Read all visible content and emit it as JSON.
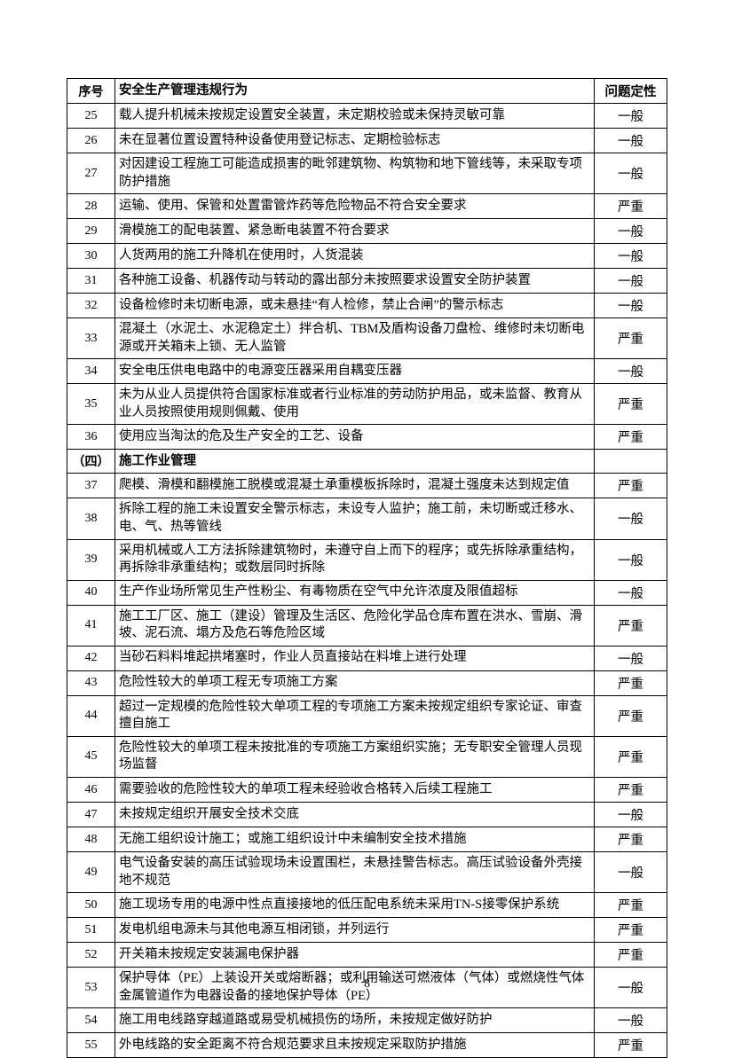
{
  "table": {
    "headers": {
      "num": "序号",
      "content": "安全生产管理违规行为",
      "level": "问题定性"
    },
    "section": {
      "num": "（四）",
      "title": "施工作业管理"
    },
    "rows": [
      {
        "num": "25",
        "content": "载人提升机械未按规定设置安全装置，未定期校验或未保持灵敏可靠",
        "level": "一般"
      },
      {
        "num": "26",
        "content": "未在显著位置设置特种设备使用登记标志、定期检验标志",
        "level": "一般"
      },
      {
        "num": "27",
        "content": "对因建设工程施工可能造成损害的毗邻建筑物、构筑物和地下管线等，未采取专项防护措施",
        "level": "一般"
      },
      {
        "num": "28",
        "content": "运输、使用、保管和处置雷管炸药等危险物品不符合安全要求",
        "level": "严重"
      },
      {
        "num": "29",
        "content": "滑模施工的配电装置、紧急断电装置不符合要求",
        "level": "一般"
      },
      {
        "num": "30",
        "content": "人货两用的施工升降机在使用时，人货混装",
        "level": "一般"
      },
      {
        "num": "31",
        "content": "各种施工设备、机器传动与转动的露出部分未按照要求设置安全防护装置",
        "level": "一般"
      },
      {
        "num": "32",
        "content": "设备检修时未切断电源，或未悬挂“有人检修，禁止合闸”的警示标志",
        "level": "一般"
      },
      {
        "num": "33",
        "content": "混凝土（水泥土、水泥稳定土）拌合机、TBM及盾构设备刀盘检、维修时未切断电源或开关箱未上锁、无人监管",
        "level": "严重"
      },
      {
        "num": "34",
        "content": "安全电压供电电路中的电源变压器采用自耦变压器",
        "level": "一般"
      },
      {
        "num": "35",
        "content": "未为从业人员提供符合国家标准或者行业标准的劳动防护用品，或未监督、教育从业人员按照使用规则佩戴、使用",
        "level": "严重"
      },
      {
        "num": "36",
        "content": "使用应当淘汰的危及生产安全的工艺、设备",
        "level": "严重"
      },
      {
        "type": "section"
      },
      {
        "num": "37",
        "content": "爬模、滑模和翻模施工脱模或混凝土承重模板拆除时，混凝土强度未达到规定值",
        "level": "严重"
      },
      {
        "num": "38",
        "content": "拆除工程的施工未设置安全警示标志，未设专人监护；施工前，未切断或迁移水、电、气、热等管线",
        "level": "一般"
      },
      {
        "num": "39",
        "content": "采用机械或人工方法拆除建筑物时，未遵守自上而下的程序；或先拆除承重结构，再拆除非承重结构；或数层同时拆除",
        "level": "一般"
      },
      {
        "num": "40",
        "content": "生产作业场所常见生产性粉尘、有毒物质在空气中允许浓度及限值超标",
        "level": "一般"
      },
      {
        "num": "41",
        "content": "施工工厂区、施工（建设）管理及生活区、危险化学品仓库布置在洪水、雪崩、滑坡、泥石流、塌方及危石等危险区域",
        "level": "严重"
      },
      {
        "num": "42",
        "content": "当砂石料料堆起拱堵塞时，作业人员直接站在料堆上进行处理",
        "level": "一般"
      },
      {
        "num": "43",
        "content": "危险性较大的单项工程无专项施工方案",
        "level": "严重"
      },
      {
        "num": "44",
        "content": "超过一定规模的危险性较大单项工程的专项施工方案未按规定组织专家论证、审查擅自施工",
        "level": "严重"
      },
      {
        "num": "45",
        "content": "危险性较大的单项工程未按批准的专项施工方案组织实施；无专职安全管理人员现场监督",
        "level": "严重"
      },
      {
        "num": "46",
        "content": "需要验收的危险性较大的单项工程未经验收合格转入后续工程施工",
        "level": "严重"
      },
      {
        "num": "47",
        "content": "未按规定组织开展安全技术交底",
        "level": "一般"
      },
      {
        "num": "48",
        "content": "无施工组织设计施工；或施工组织设计中未编制安全技术措施",
        "level": "严重"
      },
      {
        "num": "49",
        "content": "电气设备安装的高压试验现场未设置围栏，未悬挂警告标志。高压试验设备外壳接地不规范",
        "level": "一般"
      },
      {
        "num": "50",
        "content": "施工现场专用的电源中性点直接接地的低压配电系统未采用TN-S接零保护系统",
        "level": "严重"
      },
      {
        "num": "51",
        "content": "发电机组电源未与其他电源互相闭锁，并列运行",
        "level": "严重"
      },
      {
        "num": "52",
        "content": "开关箱未按规定安装漏电保护器",
        "level": "严重"
      },
      {
        "num": "53",
        "content": "保护导体（PE）上装设开关或熔断器；或利用输送可燃液体（气体）或燃烧性气体金属管道作为电器设备的接地保护导体（PE）",
        "level": "一般"
      },
      {
        "num": "54",
        "content": "施工用电线路穿越道路或易受机械损伤的场所，未按规定做好防护",
        "level": "一般"
      },
      {
        "num": "55",
        "content": "外电线路的安全距离不符合规范要求且未按规定采取防护措施",
        "level": "严重"
      }
    ]
  },
  "pageNumber": "8"
}
